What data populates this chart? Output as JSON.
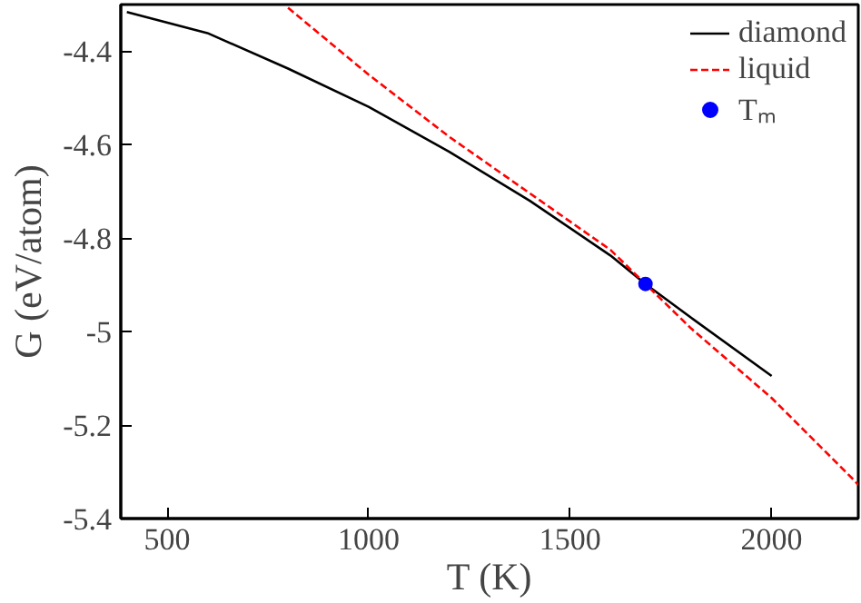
{
  "chart_data": {
    "type": "line",
    "xlabel": "T (K)",
    "ylabel": "G (eV/atom)",
    "xlim": [
      385,
      2215
    ],
    "ylim": [
      -5.4,
      -4.3
    ],
    "xticks": [
      500,
      1000,
      1500,
      2000
    ],
    "yticks": [
      -5.4,
      -5.2,
      -5,
      -4.8,
      -4.6,
      -4.4
    ],
    "legend": "top right",
    "grid": false,
    "series": [
      {
        "name": "diamond",
        "color": "#000000",
        "line_style": "solid",
        "x": [
          400,
          600,
          800,
          1000,
          1200,
          1400,
          1600,
          1687,
          1800,
          2000
        ],
        "values": [
          -4.316,
          -4.361,
          -4.437,
          -4.519,
          -4.615,
          -4.72,
          -4.837,
          -4.898,
          -4.97,
          -5.095
        ]
      },
      {
        "name": "liquid",
        "color": "#ff0000",
        "line_style": "dashed",
        "x": [
          800,
          1000,
          1200,
          1400,
          1600,
          1687,
          1800,
          2000,
          2200,
          2215
        ],
        "values": [
          -4.307,
          -4.45,
          -4.583,
          -4.704,
          -4.825,
          -4.898,
          -4.993,
          -5.142,
          -5.314,
          -5.328
        ]
      },
      {
        "name": "Tₘ",
        "type": "scatter",
        "marker": "circle",
        "color": "#0000ff",
        "x": [
          1687
        ],
        "values": [
          -4.898
        ]
      }
    ]
  }
}
